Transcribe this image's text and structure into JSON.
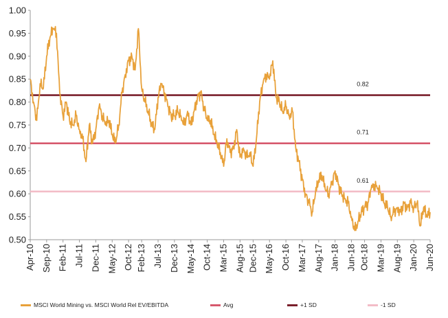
{
  "chart_data": {
    "type": "line",
    "title": "",
    "xlabel": "",
    "ylabel": "",
    "ylim": [
      0.5,
      1.0
    ],
    "y_ticks": [
      "0.50",
      "0.55",
      "0.60",
      "0.65",
      "0.70",
      "0.75",
      "0.80",
      "0.85",
      "0.90",
      "0.95",
      "1.00"
    ],
    "x_range": [
      "2010-04",
      "2020-06"
    ],
    "x_ticks": [
      {
        "label": "Apr-10",
        "date": "2010-04"
      },
      {
        "label": "Sep-10",
        "date": "2010-09"
      },
      {
        "label": "Feb-11",
        "date": "2011-02"
      },
      {
        "label": "Jul-11",
        "date": "2011-07"
      },
      {
        "label": "Dec-11",
        "date": "2011-12"
      },
      {
        "label": "May-12",
        "date": "2012-05"
      },
      {
        "label": "Oct-12",
        "date": "2012-10"
      },
      {
        "label": "Feb-13",
        "date": "2013-02"
      },
      {
        "label": "Jul-13",
        "date": "2013-07"
      },
      {
        "label": "Dec-13",
        "date": "2013-12"
      },
      {
        "label": "May-14",
        "date": "2014-05"
      },
      {
        "label": "Oct-14",
        "date": "2014-10"
      },
      {
        "label": "Mar-15",
        "date": "2015-03"
      },
      {
        "label": "Aug-15",
        "date": "2015-08"
      },
      {
        "label": "Dec-15",
        "date": "2015-12"
      },
      {
        "label": "May-16",
        "date": "2016-05"
      },
      {
        "label": "Oct-16",
        "date": "2016-10"
      },
      {
        "label": "Mar-17",
        "date": "2017-03"
      },
      {
        "label": "Aug-17",
        "date": "2017-08"
      },
      {
        "label": "Jan-18",
        "date": "2018-01"
      },
      {
        "label": "Jun-18",
        "date": "2018-06"
      },
      {
        "label": "Oct-18",
        "date": "2018-10"
      },
      {
        "label": "Mar-19",
        "date": "2019-03"
      },
      {
        "label": "Aug-19",
        "date": "2019-08"
      },
      {
        "label": "Jan-20",
        "date": "2020-01"
      },
      {
        "label": "Jun-20",
        "date": "2020-06"
      }
    ],
    "grid": false,
    "legend_position": "bottom",
    "reference_lines": [
      {
        "name": "+1 SD",
        "value": 0.815,
        "label": "0.82",
        "color": "#7a1f2b"
      },
      {
        "name": "Avg",
        "value": 0.71,
        "label": "0.71",
        "color": "#d6596d"
      },
      {
        "name": "-1 SD",
        "value": 0.605,
        "label": "0.61",
        "color": "#f3bcc7"
      }
    ],
    "series": [
      {
        "name": "MSCI World Mining vs. MSCI World Rel EV/EBITDA",
        "color": "#e8a13a",
        "points": [
          [
            "2010-04",
            0.85
          ],
          [
            "2010-05",
            0.8
          ],
          [
            "2010-06",
            0.76
          ],
          [
            "2010-07",
            0.84
          ],
          [
            "2010-08",
            0.83
          ],
          [
            "2010-09",
            0.9
          ],
          [
            "2010-10",
            0.94
          ],
          [
            "2010-11",
            0.96
          ],
          [
            "2010-12",
            0.95
          ],
          [
            "2011-01",
            0.82
          ],
          [
            "2011-02",
            0.77
          ],
          [
            "2011-03",
            0.8
          ],
          [
            "2011-04",
            0.76
          ],
          [
            "2011-05",
            0.75
          ],
          [
            "2011-06",
            0.77
          ],
          [
            "2011-07",
            0.74
          ],
          [
            "2011-08",
            0.72
          ],
          [
            "2011-09",
            0.67
          ],
          [
            "2011-10",
            0.75
          ],
          [
            "2011-11",
            0.71
          ],
          [
            "2011-12",
            0.74
          ],
          [
            "2012-01",
            0.79
          ],
          [
            "2012-02",
            0.77
          ],
          [
            "2012-03",
            0.75
          ],
          [
            "2012-04",
            0.76
          ],
          [
            "2012-05",
            0.73
          ],
          [
            "2012-06",
            0.71
          ],
          [
            "2012-07",
            0.75
          ],
          [
            "2012-08",
            0.82
          ],
          [
            "2012-09",
            0.86
          ],
          [
            "2012-10",
            0.89
          ],
          [
            "2012-11",
            0.9
          ],
          [
            "2012-12",
            0.87
          ],
          [
            "2013-01",
            0.96
          ],
          [
            "2013-02",
            0.83
          ],
          [
            "2013-03",
            0.8
          ],
          [
            "2013-04",
            0.78
          ],
          [
            "2013-05",
            0.75
          ],
          [
            "2013-06",
            0.74
          ],
          [
            "2013-07",
            0.81
          ],
          [
            "2013-08",
            0.84
          ],
          [
            "2013-09",
            0.82
          ],
          [
            "2013-10",
            0.79
          ],
          [
            "2013-11",
            0.77
          ],
          [
            "2013-12",
            0.77
          ],
          [
            "2014-01",
            0.78
          ],
          [
            "2014-02",
            0.77
          ],
          [
            "2014-03",
            0.75
          ],
          [
            "2014-04",
            0.78
          ],
          [
            "2014-05",
            0.75
          ],
          [
            "2014-06",
            0.78
          ],
          [
            "2014-07",
            0.81
          ],
          [
            "2014-08",
            0.82
          ],
          [
            "2014-09",
            0.79
          ],
          [
            "2014-10",
            0.76
          ],
          [
            "2014-11",
            0.76
          ],
          [
            "2014-12",
            0.73
          ],
          [
            "2015-01",
            0.71
          ],
          [
            "2015-02",
            0.69
          ],
          [
            "2015-03",
            0.66
          ],
          [
            "2015-04",
            0.72
          ],
          [
            "2015-05",
            0.69
          ],
          [
            "2015-06",
            0.7
          ],
          [
            "2015-07",
            0.74
          ],
          [
            "2015-08",
            0.68
          ],
          [
            "2015-09",
            0.7
          ],
          [
            "2015-10",
            0.68
          ],
          [
            "2015-11",
            0.69
          ],
          [
            "2015-12",
            0.66
          ],
          [
            "2016-01",
            0.72
          ],
          [
            "2016-02",
            0.8
          ],
          [
            "2016-03",
            0.84
          ],
          [
            "2016-04",
            0.86
          ],
          [
            "2016-05",
            0.85
          ],
          [
            "2016-06",
            0.89
          ],
          [
            "2016-07",
            0.81
          ],
          [
            "2016-08",
            0.8
          ],
          [
            "2016-09",
            0.78
          ],
          [
            "2016-10",
            0.79
          ],
          [
            "2016-11",
            0.77
          ],
          [
            "2016-12",
            0.78
          ],
          [
            "2017-01",
            0.7
          ],
          [
            "2017-02",
            0.67
          ],
          [
            "2017-03",
            0.63
          ],
          [
            "2017-04",
            0.6
          ],
          [
            "2017-05",
            0.58
          ],
          [
            "2017-06",
            0.56
          ],
          [
            "2017-07",
            0.6
          ],
          [
            "2017-08",
            0.63
          ],
          [
            "2017-09",
            0.64
          ],
          [
            "2017-10",
            0.61
          ],
          [
            "2017-11",
            0.6
          ],
          [
            "2017-12",
            0.62
          ],
          [
            "2018-01",
            0.65
          ],
          [
            "2018-02",
            0.62
          ],
          [
            "2018-03",
            0.6
          ],
          [
            "2018-04",
            0.59
          ],
          [
            "2018-05",
            0.58
          ],
          [
            "2018-06",
            0.55
          ],
          [
            "2018-07",
            0.52
          ],
          [
            "2018-08",
            0.54
          ],
          [
            "2018-09",
            0.56
          ],
          [
            "2018-10",
            0.57
          ],
          [
            "2018-11",
            0.58
          ],
          [
            "2018-12",
            0.61
          ],
          [
            "2019-01",
            0.62
          ],
          [
            "2019-02",
            0.61
          ],
          [
            "2019-03",
            0.6
          ],
          [
            "2019-04",
            0.58
          ],
          [
            "2019-05",
            0.57
          ],
          [
            "2019-06",
            0.55
          ],
          [
            "2019-07",
            0.56
          ],
          [
            "2019-08",
            0.57
          ],
          [
            "2019-09",
            0.56
          ],
          [
            "2019-10",
            0.58
          ],
          [
            "2019-11",
            0.57
          ],
          [
            "2019-12",
            0.58
          ],
          [
            "2020-01",
            0.57
          ],
          [
            "2020-02",
            0.58
          ],
          [
            "2020-03",
            0.53
          ],
          [
            "2020-04",
            0.57
          ],
          [
            "2020-05",
            0.55
          ],
          [
            "2020-06",
            0.56
          ]
        ]
      }
    ]
  },
  "legend": [
    {
      "label": "MSCI World Mining vs. MSCI World Rel EV/EBITDA",
      "color": "#e8a13a"
    },
    {
      "label": "Avg",
      "color": "#d6596d"
    },
    {
      "label": "+1 SD",
      "color": "#7a1f2b"
    },
    {
      "label": "-1 SD",
      "color": "#f3bcc7"
    }
  ]
}
